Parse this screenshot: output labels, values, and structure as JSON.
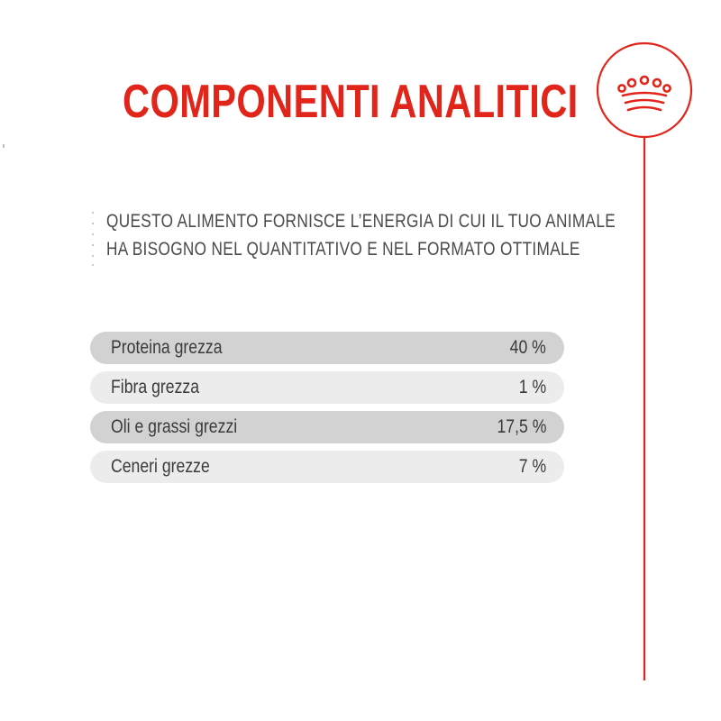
{
  "header": {
    "title": "COMPONENTI ANALITICI",
    "logo_icon": "crown-icon",
    "accent_color": "#e1251b"
  },
  "intro": {
    "lines": [
      "QUESTO ALIMENTO FORNISCE L’ENERGIA DI CUI IL TUO ANIMALE",
      "HA BISOGNO NEL QUANTITATIVO E NEL FORMATO OTTIMALE"
    ]
  },
  "components": [
    {
      "label": "Proteina grezza",
      "value": "40 %"
    },
    {
      "label": "Fibra grezza",
      "value": "1 %"
    },
    {
      "label": "Oli e grassi grezzi",
      "value": "17,5 %"
    },
    {
      "label": "Ceneri grezze",
      "value": "7 %"
    }
  ]
}
